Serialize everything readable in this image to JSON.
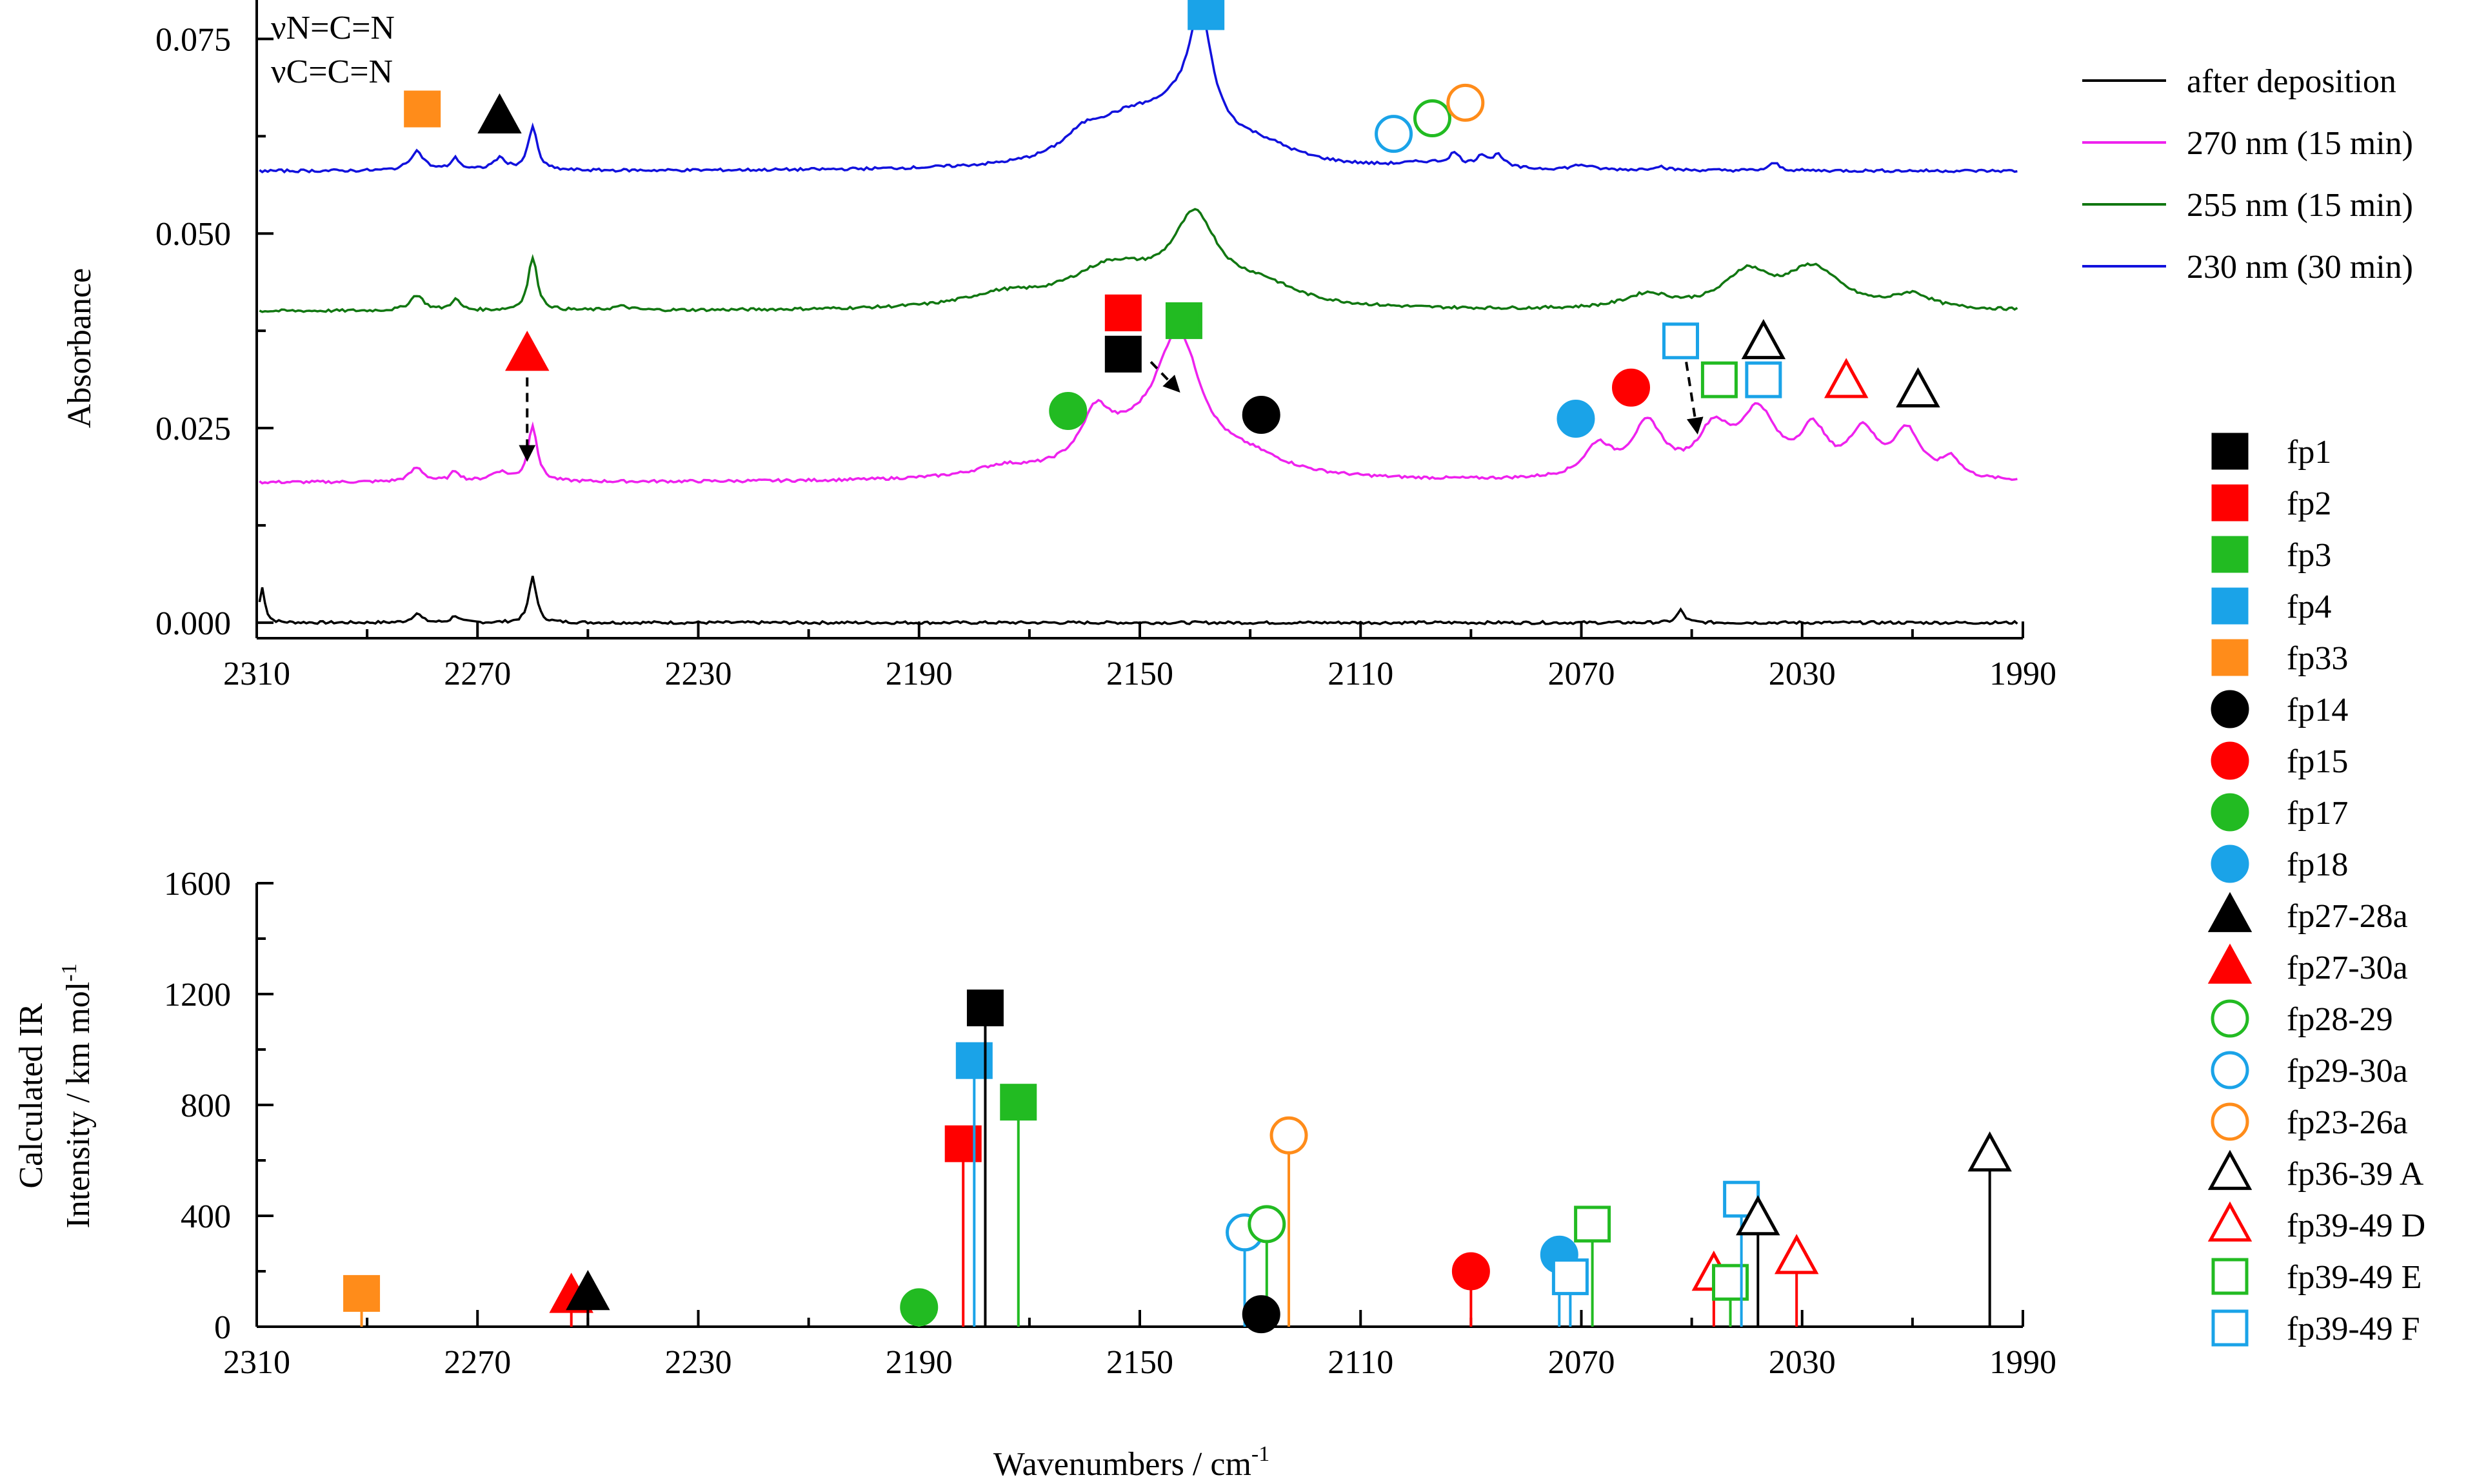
{
  "chart_data": [
    {
      "type": "line",
      "title": "",
      "xlabel": "",
      "ylabel": "Absorbance",
      "xlim": [
        2310,
        1990
      ],
      "ylim": [
        -0.002,
        0.08
      ],
      "x_ticks": [
        "2310",
        "2270",
        "2230",
        "2190",
        "2150",
        "2110",
        "2070",
        "2030",
        "1990"
      ],
      "y_ticks": [
        "0.000",
        "0.025",
        "0.050",
        "0.075"
      ],
      "annotation": [
        "νN=C=N",
        "νC=C=N"
      ],
      "legend_position": "top-right",
      "series": [
        {
          "name": "after deposition",
          "color": "#000000",
          "offset": 0.0,
          "baseline": 0.0,
          "peaks": [
            [
              2309,
              0.0045,
              0.6
            ],
            [
              2281,
              0.0012,
              1.0
            ],
            [
              2274,
              0.0009,
              0.8
            ],
            [
              2260,
              0.006,
              0.8
            ],
            [
              2052,
              0.0016,
              0.8
            ]
          ]
        },
        {
          "name": "270 nm (15 min)",
          "color": "#ee22ee",
          "offset": 0.018,
          "baseline": 0.018,
          "peaks": [
            [
              2281,
              0.0018,
              1.5
            ],
            [
              2274,
              0.0013,
              1.0
            ],
            [
              2266,
              0.0012,
              2.0
            ],
            [
              2260,
              0.0072,
              1.0
            ],
            [
              2175,
              0.0012,
              6.0
            ],
            [
              2158,
              0.0055,
              3.0
            ],
            [
              2143,
              0.0165,
              5.0
            ],
            [
              2152,
              0.004,
              10.0
            ],
            [
              2130,
              0.002,
              8.0
            ],
            [
              2067,
              0.004,
              3.0
            ],
            [
              2058,
              0.0068,
              3.5
            ],
            [
              2046,
              0.0058,
              3.5
            ],
            [
              2038,
              0.0082,
              4.0
            ],
            [
              2028,
              0.0058,
              3.0
            ],
            [
              2019,
              0.0058,
              3.0
            ],
            [
              2011,
              0.006,
              3.0
            ],
            [
              2003,
              0.0025,
              2.0
            ]
          ]
        },
        {
          "name": "255 nm (15 min)",
          "color": "#117711",
          "offset": 0.04,
          "baseline": 0.04,
          "peaks": [
            [
              2281,
              0.002,
              1.5
            ],
            [
              2274,
              0.0014,
              1.0
            ],
            [
              2260,
              0.0068,
              1.0
            ],
            [
              2244,
              0.0005,
              2.0
            ],
            [
              2175,
              0.0015,
              8.0
            ],
            [
              2155,
              0.0052,
              10.0
            ],
            [
              2140,
              0.0105,
              5.0
            ],
            [
              2128,
              0.0025,
              8.0
            ],
            [
              2058,
              0.0018,
              5.0
            ],
            [
              2040,
              0.0045,
              5.0
            ],
            [
              2028,
              0.0052,
              6.0
            ],
            [
              2010,
              0.0018,
              4.0
            ]
          ]
        },
        {
          "name": "230 nm (30 min)",
          "color": "#1111dd",
          "offset": 0.058,
          "baseline": 0.058,
          "peaks": [
            [
              2281,
              0.0025,
              1.5
            ],
            [
              2274,
              0.0015,
              1.0
            ],
            [
              2266,
              0.0015,
              1.5
            ],
            [
              2260,
              0.0055,
              1.0
            ],
            [
              2160,
              0.0028,
              5.0
            ],
            [
              2152,
              0.0045,
              8.0
            ],
            [
              2139,
              0.0135,
              2.5
            ],
            [
              2142,
              0.006,
              8.0
            ],
            [
              2128,
              0.002,
              8.0
            ],
            [
              2098,
              0.0007,
              6.0
            ],
            [
              2093,
              0.0015,
              1.2
            ],
            [
              2088,
              0.0015,
              1.2
            ],
            [
              2085,
              0.0016,
              1.2
            ],
            [
              2070,
              0.0006,
              2.0
            ],
            [
              2056,
              0.0005,
              1.5
            ],
            [
              2035,
              0.001,
              1.0
            ]
          ]
        }
      ],
      "markers": [
        {
          "label": "fp33",
          "shape": "square",
          "fill": "#ff8c1a",
          "stroke": "#ff8c1a",
          "x": 2280,
          "y": 0.066
        },
        {
          "label": "fp27-28a",
          "shape": "triangle",
          "fill": "#000000",
          "stroke": "#000000",
          "x": 2266,
          "y": 0.065
        },
        {
          "label": "fp4",
          "shape": "square",
          "fill": "#1aa3e8",
          "stroke": "#1aa3e8",
          "x": 2138,
          "y": 0.0785
        },
        {
          "label": "fp29-30a",
          "shape": "circle",
          "fill": "none",
          "stroke": "#1aa3e8",
          "x": 2104,
          "y": 0.0628
        },
        {
          "label": "fp28-29",
          "shape": "circle",
          "fill": "none",
          "stroke": "#22bb22",
          "x": 2097,
          "y": 0.0648
        },
        {
          "label": "fp23-26a",
          "shape": "circle",
          "fill": "none",
          "stroke": "#ff8c1a",
          "x": 2091,
          "y": 0.0668
        },
        {
          "label": "fp27-30a",
          "shape": "triangle",
          "fill": "#ff0000",
          "stroke": "#ff0000",
          "x": 2261,
          "y": 0.0345
        },
        {
          "label": "fp2",
          "shape": "square",
          "fill": "#ff0000",
          "stroke": "#ff0000",
          "x": 2153,
          "y": 0.0398
        },
        {
          "label": "fp3",
          "shape": "square",
          "fill": "#22bb22",
          "stroke": "#22bb22",
          "x": 2142,
          "y": 0.0388
        },
        {
          "label": "fp1",
          "shape": "square",
          "fill": "#000000",
          "stroke": "#000000",
          "x": 2153,
          "y": 0.0345
        },
        {
          "label": "fp17",
          "shape": "circle",
          "fill": "#22bb22",
          "stroke": "#22bb22",
          "x": 2163,
          "y": 0.0272
        },
        {
          "label": "fp14",
          "shape": "circle",
          "fill": "#000000",
          "stroke": "#000000",
          "x": 2128,
          "y": 0.0267
        },
        {
          "label": "fp18",
          "shape": "circle",
          "fill": "#1aa3e8",
          "stroke": "#1aa3e8",
          "x": 2071,
          "y": 0.0262
        },
        {
          "label": "fp15",
          "shape": "circle",
          "fill": "#ff0000",
          "stroke": "#ff0000",
          "x": 2061,
          "y": 0.0302
        },
        {
          "label": "fp39-49 F",
          "shape": "square",
          "fill": "none",
          "stroke": "#1aa3e8",
          "x": 2052,
          "y": 0.0362
        },
        {
          "label": "fp36-39 A",
          "shape": "triangle",
          "fill": "none",
          "stroke": "#000000",
          "x": 2037,
          "y": 0.036
        },
        {
          "label": "fp39-49 E",
          "shape": "square",
          "fill": "none",
          "stroke": "#22bb22",
          "x": 2045,
          "y": 0.0312
        },
        {
          "label": "fp39-49 F",
          "shape": "square",
          "fill": "none",
          "stroke": "#1aa3e8",
          "x": 2037,
          "y": 0.0312
        },
        {
          "label": "fp39-49 D",
          "shape": "triangle",
          "fill": "none",
          "stroke": "#ff0000",
          "x": 2022,
          "y": 0.031
        },
        {
          "label": "fp36-39 A",
          "shape": "triangle",
          "fill": "none",
          "stroke": "#000000",
          "x": 2009,
          "y": 0.0298
        }
      ],
      "arrows": [
        {
          "from": [
            2261,
            0.0315
          ],
          "to": [
            2261,
            0.021
          ]
        },
        {
          "from": [
            2148,
            0.0335
          ],
          "to": [
            2143,
            0.0298
          ]
        },
        {
          "from": [
            2051,
            0.0335
          ],
          "to": [
            2049,
            0.0245
          ]
        }
      ]
    },
    {
      "type": "bar",
      "title": "",
      "xlabel": "Wavenumbers / cm",
      "xlabel_sup": "-1",
      "ylabel_line1": "Calculated IR",
      "ylabel_line2": "Intensity / km mol",
      "ylabel_sup": "-1",
      "xlim": [
        2310,
        1990
      ],
      "ylim": [
        0,
        1600
      ],
      "x_ticks": [
        "2310",
        "2270",
        "2230",
        "2190",
        "2150",
        "2110",
        "2070",
        "2030",
        "1990"
      ],
      "y_ticks": [
        "0",
        "400",
        "800",
        "1200",
        "1600"
      ],
      "sticks": [
        {
          "label": "fp33",
          "shape": "square",
          "fill": "#ff8c1a",
          "stroke": "#ff8c1a",
          "x": 2291,
          "y": 120
        },
        {
          "label": "fp27-30a",
          "shape": "triangle",
          "fill": "#ff0000",
          "stroke": "#ff0000",
          "x": 2253,
          "y": 110
        },
        {
          "label": "fp27-28a",
          "shape": "triangle",
          "fill": "#000000",
          "stroke": "#000000",
          "x": 2250,
          "y": 120
        },
        {
          "label": "fp17",
          "shape": "circle",
          "fill": "#22bb22",
          "stroke": "#22bb22",
          "x": 2190,
          "y": 70
        },
        {
          "label": "fp2",
          "shape": "square",
          "fill": "#ff0000",
          "stroke": "#ff0000",
          "x": 2182,
          "y": 660
        },
        {
          "label": "fp4",
          "shape": "square",
          "fill": "#1aa3e8",
          "stroke": "#1aa3e8",
          "x": 2180,
          "y": 960
        },
        {
          "label": "fp1",
          "shape": "square",
          "fill": "#000000",
          "stroke": "#000000",
          "x": 2178,
          "y": 1150
        },
        {
          "label": "fp3",
          "shape": "square",
          "fill": "#22bb22",
          "stroke": "#22bb22",
          "x": 2172,
          "y": 810
        },
        {
          "label": "fp29-30a",
          "shape": "circle",
          "fill": "none",
          "stroke": "#1aa3e8",
          "x": 2131,
          "y": 340
        },
        {
          "label": "fp28-29",
          "shape": "circle",
          "fill": "none",
          "stroke": "#22bb22",
          "x": 2127,
          "y": 370
        },
        {
          "label": "fp14",
          "shape": "circle",
          "fill": "#000000",
          "stroke": "#000000",
          "x": 2128,
          "y": 45
        },
        {
          "label": "fp23-26a",
          "shape": "circle",
          "fill": "none",
          "stroke": "#ff8c1a",
          "x": 2123,
          "y": 690
        },
        {
          "label": "fp15",
          "shape": "circle",
          "fill": "#ff0000",
          "stroke": "#ff0000",
          "x": 2090,
          "y": 200
        },
        {
          "label": "fp18",
          "shape": "circle",
          "fill": "#1aa3e8",
          "stroke": "#1aa3e8",
          "x": 2074,
          "y": 260
        },
        {
          "label": "fp39-49 F",
          "shape": "square",
          "fill": "none",
          "stroke": "#1aa3e8",
          "x": 2072,
          "y": 180
        },
        {
          "label": "fp39-49 E",
          "shape": "square",
          "fill": "none",
          "stroke": "#22bb22",
          "x": 2068,
          "y": 370
        },
        {
          "label": "fp39-49 D",
          "shape": "triangle",
          "fill": "none",
          "stroke": "#ff0000",
          "x": 2046,
          "y": 190
        },
        {
          "label": "fp39-49 E",
          "shape": "square",
          "fill": "none",
          "stroke": "#22bb22",
          "x": 2043,
          "y": 160
        },
        {
          "label": "fp39-49 F",
          "shape": "square",
          "fill": "none",
          "stroke": "#1aa3e8",
          "x": 2041,
          "y": 460
        },
        {
          "label": "fp36-39 A",
          "shape": "triangle",
          "fill": "none",
          "stroke": "#000000",
          "x": 2038,
          "y": 390
        },
        {
          "label": "fp39-49 D",
          "shape": "triangle",
          "fill": "none",
          "stroke": "#ff0000",
          "x": 2031,
          "y": 250
        },
        {
          "label": "fp36-39 A",
          "shape": "triangle",
          "fill": "none",
          "stroke": "#000000",
          "x": 1996,
          "y": 620
        }
      ]
    }
  ],
  "marker_legend": [
    {
      "label": "fp1",
      "shape": "square",
      "fill": "#000000",
      "stroke": "#000000"
    },
    {
      "label": "fp2",
      "shape": "square",
      "fill": "#ff0000",
      "stroke": "#ff0000"
    },
    {
      "label": "fp3",
      "shape": "square",
      "fill": "#22bb22",
      "stroke": "#22bb22"
    },
    {
      "label": "fp4",
      "shape": "square",
      "fill": "#1aa3e8",
      "stroke": "#1aa3e8"
    },
    {
      "label": "fp33",
      "shape": "square",
      "fill": "#ff8c1a",
      "stroke": "#ff8c1a"
    },
    {
      "label": "fp14",
      "shape": "circle",
      "fill": "#000000",
      "stroke": "#000000"
    },
    {
      "label": "fp15",
      "shape": "circle",
      "fill": "#ff0000",
      "stroke": "#ff0000"
    },
    {
      "label": "fp17",
      "shape": "circle",
      "fill": "#22bb22",
      "stroke": "#22bb22"
    },
    {
      "label": "fp18",
      "shape": "circle",
      "fill": "#1aa3e8",
      "stroke": "#1aa3e8"
    },
    {
      "label": "fp27-28a",
      "shape": "triangle",
      "fill": "#000000",
      "stroke": "#000000"
    },
    {
      "label": "fp27-30a",
      "shape": "triangle",
      "fill": "#ff0000",
      "stroke": "#ff0000"
    },
    {
      "label": "fp28-29",
      "shape": "circle",
      "fill": "none",
      "stroke": "#22bb22"
    },
    {
      "label": "fp29-30a",
      "shape": "circle",
      "fill": "none",
      "stroke": "#1aa3e8"
    },
    {
      "label": "fp23-26a",
      "shape": "circle",
      "fill": "none",
      "stroke": "#ff8c1a"
    },
    {
      "label": "fp36-39 A",
      "shape": "triangle",
      "fill": "none",
      "stroke": "#000000"
    },
    {
      "label": "fp39-49 D",
      "shape": "triangle",
      "fill": "none",
      "stroke": "#ff0000"
    },
    {
      "label": "fp39-49 E",
      "shape": "square",
      "fill": "none",
      "stroke": "#22bb22"
    },
    {
      "label": "fp39-49 F",
      "shape": "square",
      "fill": "none",
      "stroke": "#1aa3e8"
    }
  ]
}
